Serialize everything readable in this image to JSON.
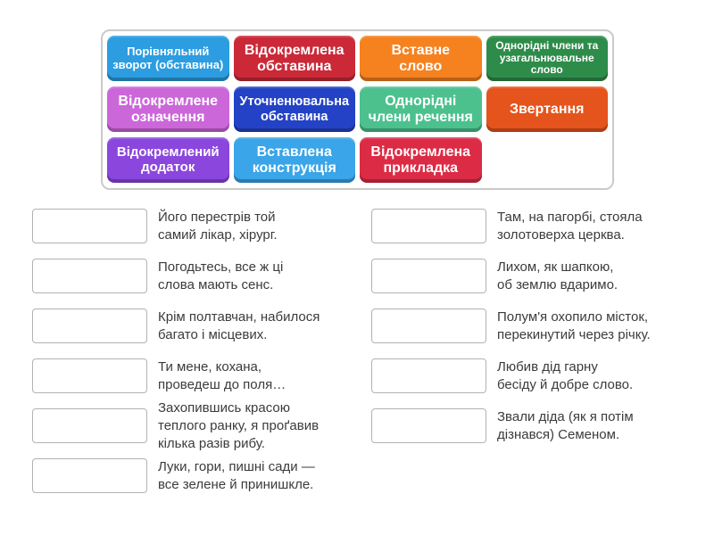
{
  "panel": {
    "tiles": [
      {
        "label": "Порівняльний\nзворот (обставина)",
        "color": "#2b9de0"
      },
      {
        "label": "Відокремлена\nобставина",
        "color": "#cb2938"
      },
      {
        "label": "Вставне\nслово",
        "color": "#f5821f"
      },
      {
        "label": "Однорідні члени та\nузагальнювальне\nслово",
        "color": "#2e8c4a"
      },
      {
        "label": "Відокремлене\nозначення",
        "color": "#cb67d9"
      },
      {
        "label": "Уточненювальна\nобставина",
        "color": "#2342c6"
      },
      {
        "label": "Однорідні\nчлени речення",
        "color": "#4cc18e"
      },
      {
        "label": "Звертання",
        "color": "#e5541c"
      },
      {
        "label": "Відокремлений\nдодаток",
        "color": "#8b46de"
      },
      {
        "label": "Вставлена\nконструкція",
        "color": "#3aa5e8"
      },
      {
        "label": "Відокремлена\nприкладка",
        "color": "#dc2b45"
      }
    ]
  },
  "left": {
    "items": [
      "Його перестрів той\nсамий лікар, хірург.",
      "Погодьтесь, все ж ці\nслова мають сенс.",
      "Крім полтавчан, набилося\nбагато і місцевих.",
      "Ти мене, кохана,\nпроведеш до поля…",
      "Захопившись красою\nтеплого ранку, я проґавив\nкілька разів рибу.",
      "Луки, гори, пишні сади —\nвсе зелене й принишкле."
    ]
  },
  "right": {
    "items": [
      "Там, на пагорбі, стояла\nзолотоверха церква.",
      "Лихом, як шапкою,\nоб землю вдаримо.",
      "Полум'я охопило місток,\nперекинутий через річку.",
      "Любив дід гарну\nбесіду й добре слово.",
      "Звали діда (як я потім\nдізнався) Семеном."
    ]
  }
}
